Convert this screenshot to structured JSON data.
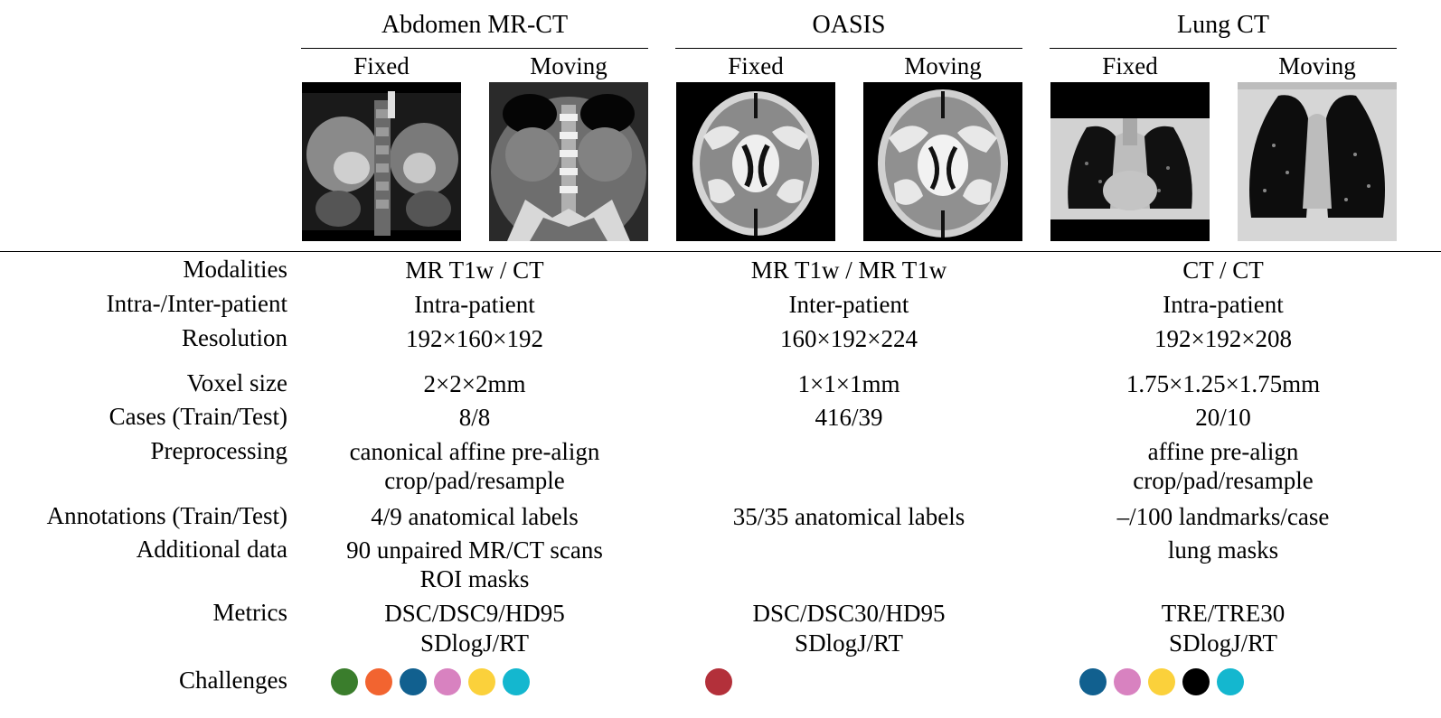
{
  "datasets": [
    {
      "name": "Abdomen MR-CT",
      "fixed_label": "Fixed",
      "moving_label": "Moving",
      "values": {
        "modalities": "MR T1w / CT",
        "intra_inter": "Intra-patient",
        "resolution": "192×160×192",
        "voxel": "2×2×2mm",
        "cases": "8/8",
        "preproc": [
          "canonical affine pre-align",
          "crop/pad/resample"
        ],
        "annotations": "4/9 anatomical labels",
        "additional": [
          "90 unpaired MR/CT scans",
          "ROI masks"
        ],
        "metrics": [
          "DSC/DSC9/HD95",
          "SDlogJ/RT"
        ]
      },
      "challenges": [
        "#3a7d2c",
        "#f26430",
        "#11608f",
        "#d882c0",
        "#fbd13b",
        "#14b7cf"
      ]
    },
    {
      "name": "OASIS",
      "fixed_label": "Fixed",
      "moving_label": "Moving",
      "values": {
        "modalities": "MR T1w / MR T1w",
        "intra_inter": "Inter-patient",
        "resolution": "160×192×224",
        "voxel": "1×1×1mm",
        "cases": "416/39",
        "preproc": [
          "",
          ""
        ],
        "annotations": "35/35 anatomical labels",
        "additional": [
          "",
          ""
        ],
        "metrics": [
          "DSC/DSC30/HD95",
          "SDlogJ/RT"
        ]
      },
      "challenges": [
        "#b3303a"
      ]
    },
    {
      "name": "Lung CT",
      "fixed_label": "Fixed",
      "moving_label": "Moving",
      "values": {
        "modalities": "CT / CT",
        "intra_inter": "Intra-patient",
        "resolution": "192×192×208",
        "voxel": "1.75×1.25×1.75mm",
        "cases": "20/10",
        "preproc": [
          "affine pre-align",
          "crop/pad/resample"
        ],
        "annotations": "–/100 landmarks/case",
        "additional": [
          "lung masks",
          ""
        ],
        "metrics": [
          "TRE/TRE30",
          "SDlogJ/RT"
        ]
      },
      "challenges": [
        "#11608f",
        "#d882c0",
        "#fbd13b",
        "#000000",
        "#14b7cf"
      ]
    }
  ],
  "row_labels": {
    "modalities": "Modalities",
    "intra_inter": "Intra-/Inter-patient",
    "resolution": "Resolution",
    "voxel": "Voxel size",
    "cases": "Cases (Train/Test)",
    "preproc": "Preprocessing",
    "annotations": "Annotations (Train/Test)",
    "additional": "Additional data",
    "metrics": "Metrics",
    "challenges": "Challenges"
  }
}
